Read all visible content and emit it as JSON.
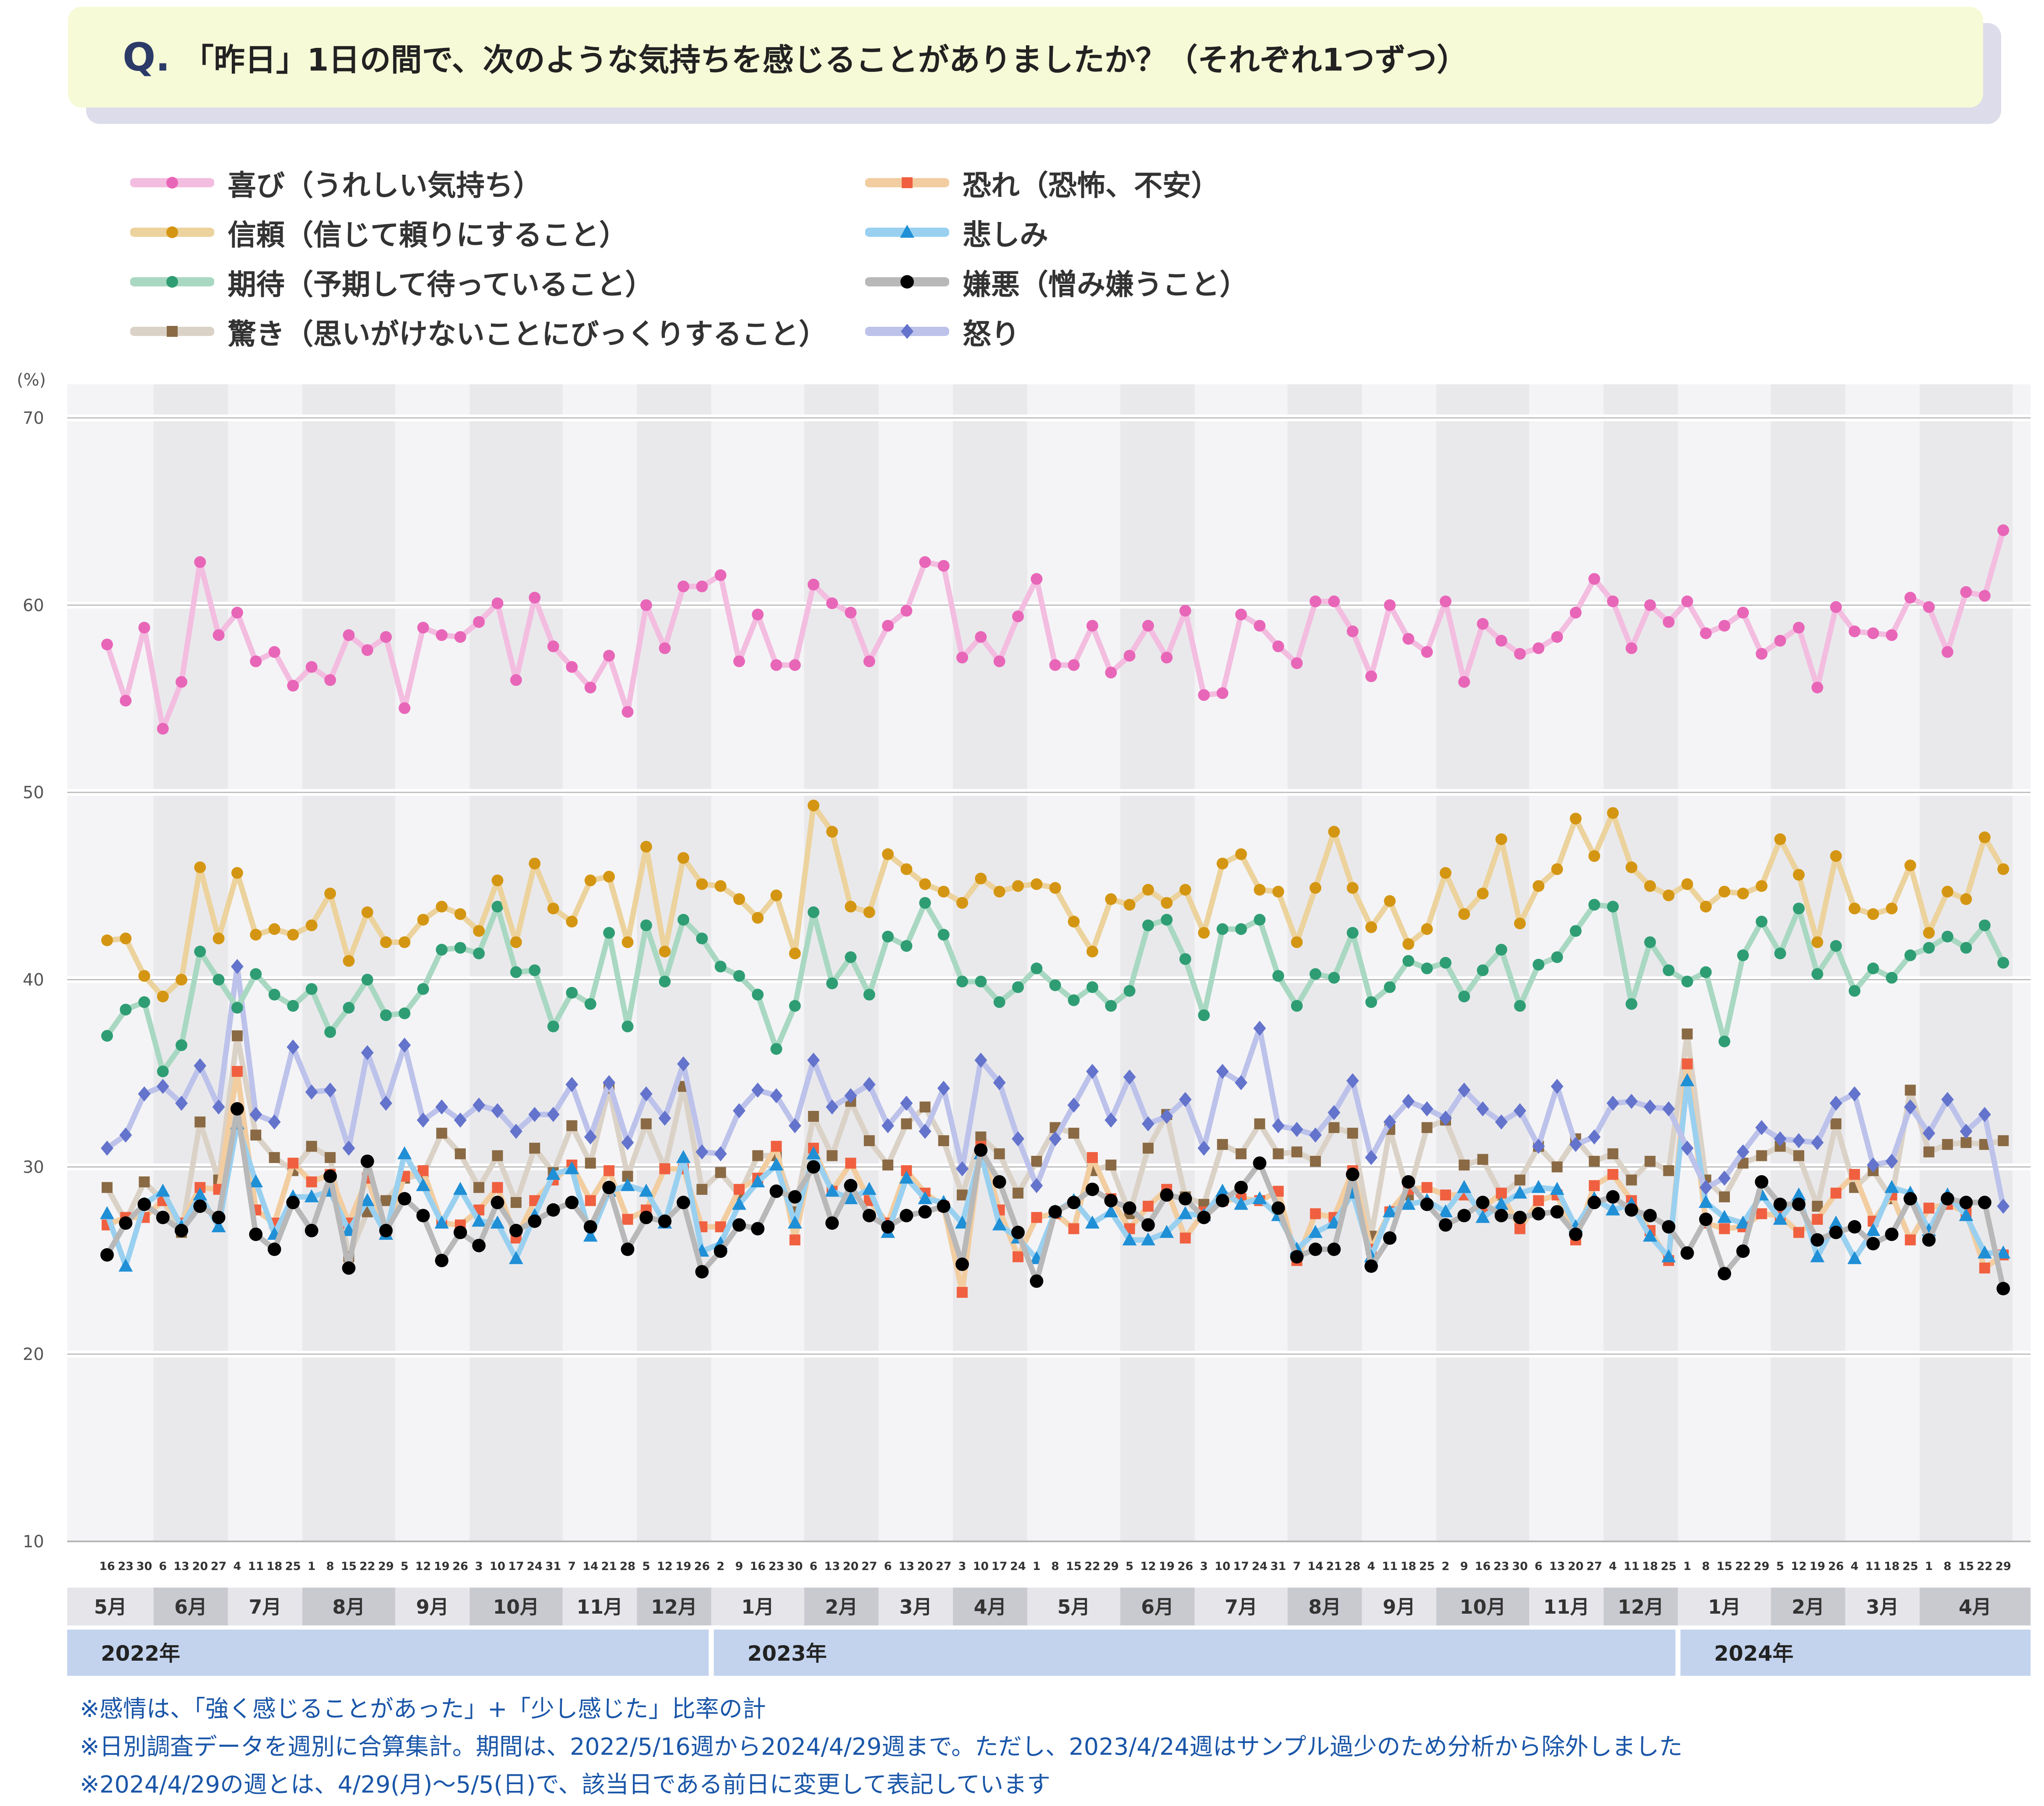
{
  "question": {
    "letter": "Q.",
    "text": "「昨日」1日の間で、次のような気持ちを感じることがありましたか？（それぞれ1つずつ）"
  },
  "unit_label": "(%)",
  "notes": [
    "※感情は、「強く感じることがあった」+「少し感じた」比率の計",
    "※日別調査データを週別に合算集計。期間は、2022/5/16週から2024/4/29週まで。ただし、2023/4/24週はサンプル過少のため分析から除外しました",
    "※2024/4/29の週とは、4/29(月)～5/5(日)で、該当日である前日に変更して表記しています"
  ],
  "chart_data": {
    "type": "line",
    "ylim": [
      10,
      70
    ],
    "yticks": [
      10,
      20,
      30,
      40,
      50,
      60,
      70
    ],
    "x": [
      "16",
      "23",
      "30",
      "6",
      "13",
      "20",
      "27",
      "4",
      "11",
      "18",
      "25",
      "1",
      "8",
      "15",
      "22",
      "29",
      "5",
      "12",
      "19",
      "26",
      "3",
      "10",
      "17",
      "24",
      "31",
      "7",
      "14",
      "21",
      "28",
      "5",
      "12",
      "19",
      "26",
      "2",
      "9",
      "16",
      "23",
      "30",
      "6",
      "13",
      "20",
      "27",
      "6",
      "13",
      "20",
      "27",
      "3",
      "10",
      "17",
      "24",
      "1",
      "8",
      "15",
      "22",
      "29",
      "5",
      "12",
      "19",
      "26",
      "3",
      "10",
      "17",
      "24",
      "31",
      "7",
      "14",
      "21",
      "28",
      "4",
      "11",
      "18",
      "25",
      "2",
      "9",
      "16",
      "23",
      "30",
      "6",
      "13",
      "20",
      "27",
      "4",
      "11",
      "18",
      "25",
      "1",
      "8",
      "15",
      "22",
      "29",
      "5",
      "12",
      "19",
      "26",
      "4",
      "11",
      "18",
      "25",
      "1",
      "8",
      "15",
      "22",
      "29"
    ],
    "months": [
      {
        "label": "5月",
        "count": 3
      },
      {
        "label": "6月",
        "count": 4
      },
      {
        "label": "7月",
        "count": 4
      },
      {
        "label": "8月",
        "count": 5
      },
      {
        "label": "9月",
        "count": 4
      },
      {
        "label": "10月",
        "count": 5
      },
      {
        "label": "11月",
        "count": 4
      },
      {
        "label": "12月",
        "count": 4
      },
      {
        "label": "1月",
        "count": 5
      },
      {
        "label": "2月",
        "count": 4
      },
      {
        "label": "3月",
        "count": 4
      },
      {
        "label": "4月",
        "count": 4
      },
      {
        "label": "5月",
        "count": 5
      },
      {
        "label": "6月",
        "count": 4
      },
      {
        "label": "7月",
        "count": 5
      },
      {
        "label": "8月",
        "count": 4
      },
      {
        "label": "9月",
        "count": 4
      },
      {
        "label": "10月",
        "count": 5
      },
      {
        "label": "11月",
        "count": 4
      },
      {
        "label": "12月",
        "count": 4
      },
      {
        "label": "1月",
        "count": 5
      },
      {
        "label": "2月",
        "count": 4
      },
      {
        "label": "3月",
        "count": 4
      },
      {
        "label": "4月",
        "count": 5
      }
    ],
    "years": [
      {
        "label": "2022年",
        "count": 33
      },
      {
        "label": "2023年",
        "count": 52
      },
      {
        "label": "2024年",
        "count": 18
      }
    ],
    "series": [
      {
        "name": "喜び（うれしい気持ち）",
        "color": "#e866b8",
        "line_color": "#f3bde0",
        "marker": "circle",
        "values": [
          57.9,
          54.9,
          58.8,
          53.4,
          55.9,
          62.3,
          58.4,
          59.6,
          57.0,
          57.5,
          55.7,
          56.7,
          56.0,
          58.4,
          57.6,
          58.3,
          54.5,
          58.8,
          58.4,
          58.3,
          59.1,
          60.1,
          56.0,
          60.4,
          57.8,
          56.7,
          55.6,
          57.3,
          54.3,
          60.0,
          57.7,
          61.0,
          61.0,
          61.6,
          57.0,
          59.5,
          56.8,
          56.8,
          61.1,
          60.1,
          59.6,
          57.0,
          58.9,
          59.7,
          62.3,
          62.1,
          57.2,
          58.3,
          57.0,
          59.4,
          61.4,
          56.8,
          56.8,
          58.9,
          56.4,
          57.3,
          58.9,
          57.2,
          59.7,
          55.2,
          55.3,
          59.5,
          58.9,
          57.8,
          56.9,
          60.2,
          60.2,
          58.6,
          56.2,
          60.0,
          58.2,
          57.5,
          60.2,
          55.9,
          59.0,
          58.1,
          57.4,
          57.7,
          58.3,
          59.6,
          61.4,
          60.2,
          57.7,
          60.0,
          59.1,
          60.2,
          58.5,
          58.9,
          59.6,
          57.4,
          58.1,
          58.8,
          55.6,
          59.9,
          58.6,
          58.5,
          58.4,
          60.4,
          59.9,
          57.5,
          60.7,
          60.5,
          64.0
        ]
      },
      {
        "name": "信頼（信じて頼りにすること）",
        "color": "#d49612",
        "line_color": "#ecd29c",
        "marker": "circle",
        "values": [
          42.1,
          42.2,
          40.2,
          39.1,
          40.0,
          46.0,
          42.2,
          45.7,
          42.4,
          42.7,
          42.4,
          42.9,
          44.6,
          41.0,
          43.6,
          42.0,
          42.0,
          43.2,
          43.9,
          43.5,
          42.6,
          45.3,
          42.0,
          46.2,
          43.8,
          43.1,
          45.3,
          45.5,
          42.0,
          47.1,
          41.5,
          46.5,
          45.1,
          45.0,
          44.3,
          43.3,
          44.5,
          41.4,
          49.3,
          47.9,
          43.9,
          43.6,
          46.7,
          45.9,
          45.1,
          44.7,
          44.1,
          45.4,
          44.7,
          45.0,
          45.1,
          44.9,
          43.1,
          41.5,
          44.3,
          44.0,
          44.8,
          44.1,
          44.8,
          42.5,
          46.2,
          46.7,
          44.8,
          44.7,
          42.0,
          44.9,
          47.9,
          44.9,
          42.8,
          44.2,
          41.9,
          42.7,
          45.7,
          43.5,
          44.6,
          47.5,
          43.0,
          45.0,
          45.9,
          48.6,
          46.6,
          48.9,
          46.0,
          45.0,
          44.5,
          45.1,
          43.9,
          44.7,
          44.6,
          45.0,
          47.5,
          45.6,
          42.0,
          46.6,
          43.8,
          43.5,
          43.8,
          46.1,
          42.5,
          44.7,
          44.3,
          47.6,
          45.9
        ]
      },
      {
        "name": "期待（予期して待っていること）",
        "color": "#2f9d74",
        "line_color": "#a9d8c2",
        "marker": "circle",
        "values": [
          37.0,
          38.4,
          38.8,
          35.1,
          36.5,
          41.5,
          40.0,
          38.5,
          40.3,
          39.2,
          38.6,
          39.5,
          37.2,
          38.5,
          40.0,
          38.1,
          38.2,
          39.5,
          41.6,
          41.7,
          41.4,
          43.9,
          40.4,
          40.5,
          37.5,
          39.3,
          38.7,
          42.5,
          37.5,
          42.9,
          39.9,
          43.2,
          42.2,
          40.7,
          40.2,
          39.2,
          36.3,
          38.6,
          43.6,
          39.8,
          41.2,
          39.2,
          42.3,
          41.8,
          44.1,
          42.4,
          39.9,
          39.9,
          38.8,
          39.6,
          40.6,
          39.7,
          38.9,
          39.6,
          38.6,
          39.4,
          42.9,
          43.2,
          41.1,
          38.1,
          42.7,
          42.7,
          43.2,
          40.2,
          38.6,
          40.3,
          40.1,
          42.5,
          38.8,
          39.6,
          41.0,
          40.6,
          40.9,
          39.1,
          40.5,
          41.6,
          38.6,
          40.8,
          41.2,
          42.6,
          44.0,
          43.9,
          38.7,
          42.0,
          40.5,
          39.9,
          40.4,
          36.7,
          41.3,
          43.1,
          41.4,
          43.8,
          40.3,
          41.8,
          39.4,
          40.6,
          40.1,
          41.3,
          41.7,
          42.3,
          41.7,
          42.9,
          40.9
        ]
      },
      {
        "name": "驚き（思いがけないことにびっくりすること）",
        "color": "#8a6a44",
        "line_color": "#dbd2c7",
        "marker": "square",
        "values": [
          28.9,
          27.1,
          29.2,
          28.2,
          26.5,
          32.4,
          29.3,
          37.0,
          31.7,
          30.5,
          29.8,
          31.1,
          30.5,
          25.2,
          27.6,
          28.2,
          29.4,
          29.6,
          31.8,
          30.7,
          28.9,
          30.6,
          28.1,
          31.0,
          29.7,
          32.2,
          30.2,
          34.2,
          29.5,
          32.3,
          29.9,
          34.3,
          28.8,
          29.7,
          28.5,
          30.6,
          30.6,
          27.6,
          32.7,
          30.6,
          33.5,
          31.4,
          30.1,
          32.3,
          33.2,
          31.4,
          28.5,
          31.6,
          30.7,
          28.6,
          30.3,
          32.1,
          31.8,
          29.8,
          30.1,
          27.5,
          31.0,
          32.8,
          28.4,
          28.0,
          31.2,
          30.7,
          32.3,
          30.7,
          30.8,
          30.3,
          32.1,
          31.8,
          26.3,
          32.0,
          28.5,
          32.1,
          32.5,
          30.1,
          30.4,
          28.5,
          29.3,
          31.1,
          30.0,
          31.5,
          30.3,
          30.7,
          29.3,
          30.3,
          29.8,
          37.1,
          29.3,
          28.4,
          30.2,
          30.6,
          31.1,
          30.6,
          27.9,
          32.3,
          28.9,
          29.8,
          28.3,
          34.1,
          30.8,
          31.2,
          31.3,
          31.2,
          31.4
        ]
      },
      {
        "name": "恐れ（恐怖、不安）",
        "color": "#f06040",
        "line_color": "#f2cda0",
        "marker": "square",
        "values": [
          26.9,
          27.3,
          27.3,
          28.2,
          27.0,
          28.9,
          28.8,
          35.1,
          27.7,
          27.0,
          30.2,
          29.2,
          29.6,
          27.0,
          29.4,
          26.6,
          29.5,
          29.8,
          27.0,
          26.9,
          27.7,
          28.9,
          26.2,
          28.2,
          29.3,
          30.1,
          28.2,
          29.8,
          27.2,
          27.7,
          29.9,
          29.9,
          26.8,
          26.8,
          28.8,
          29.4,
          31.1,
          26.1,
          31.0,
          28.7,
          30.2,
          28.2,
          27.0,
          29.8,
          28.6,
          27.9,
          23.3,
          31.1,
          27.7,
          25.2,
          27.3,
          27.5,
          26.7,
          30.5,
          28.3,
          26.7,
          27.9,
          28.8,
          26.2,
          27.6,
          28.2,
          28.3,
          28.2,
          28.7,
          25.0,
          27.5,
          27.3,
          29.8,
          25.6,
          27.6,
          28.8,
          28.9,
          28.5,
          28.5,
          27.8,
          28.6,
          26.7,
          28.2,
          28.5,
          26.1,
          29.0,
          29.6,
          28.2,
          26.6,
          25.0,
          35.5,
          27.0,
          26.7,
          26.8,
          27.5,
          27.4,
          26.5,
          27.2,
          28.6,
          29.6,
          27.1,
          28.5,
          26.1,
          27.8,
          28.0,
          27.6,
          24.6,
          25.3
        ]
      },
      {
        "name": "悲しみ",
        "color": "#1f8fd6",
        "line_color": "#99d0f0",
        "marker": "triangle",
        "values": [
          27.5,
          24.7,
          28.0,
          28.7,
          26.8,
          28.5,
          26.8,
          32.3,
          29.2,
          26.4,
          28.4,
          28.4,
          28.7,
          26.6,
          28.2,
          26.4,
          30.7,
          29.0,
          27.0,
          28.8,
          27.1,
          27.0,
          25.1,
          27.4,
          29.6,
          29.9,
          26.3,
          28.7,
          29.0,
          28.7,
          27.0,
          30.5,
          25.5,
          25.9,
          28.0,
          29.2,
          30.1,
          27.0,
          30.7,
          28.7,
          28.3,
          28.8,
          26.5,
          29.4,
          28.3,
          28.1,
          27.0,
          30.7,
          26.9,
          26.2,
          25.1,
          27.6,
          28.2,
          27.0,
          27.6,
          26.1,
          26.1,
          26.5,
          27.5,
          27.4,
          28.7,
          28.0,
          28.3,
          27.4,
          25.6,
          26.5,
          27.0,
          28.6,
          25.2,
          27.6,
          28.0,
          28.2,
          27.6,
          28.9,
          27.3,
          28.0,
          28.6,
          28.9,
          28.8,
          26.8,
          28.3,
          27.7,
          28.0,
          26.3,
          25.2,
          34.6,
          28.1,
          27.3,
          27.0,
          28.5,
          27.2,
          28.5,
          25.2,
          27.0,
          25.1,
          26.6,
          28.9,
          28.6,
          26.6,
          28.5,
          27.4,
          25.4,
          25.4
        ]
      },
      {
        "name": "嫌悪（憎み嫌うこと）",
        "color": "#000000",
        "line_color": "#b8b8b8",
        "marker": "circle",
        "values": [
          25.3,
          27.0,
          28.0,
          27.3,
          26.6,
          27.9,
          27.3,
          33.1,
          26.4,
          25.6,
          28.1,
          26.6,
          29.5,
          24.6,
          30.3,
          26.6,
          28.3,
          27.4,
          25.0,
          26.5,
          25.8,
          28.1,
          26.6,
          27.1,
          27.7,
          28.1,
          26.8,
          28.9,
          25.6,
          27.3,
          27.1,
          28.1,
          24.4,
          25.5,
          26.9,
          26.7,
          28.7,
          28.4,
          30.0,
          27.0,
          29.0,
          27.4,
          26.8,
          27.4,
          27.6,
          27.9,
          24.8,
          30.9,
          29.2,
          26.5,
          23.9,
          27.6,
          28.1,
          28.8,
          28.2,
          27.8,
          26.9,
          28.5,
          28.3,
          27.3,
          28.2,
          28.9,
          30.2,
          27.8,
          25.2,
          25.6,
          25.6,
          29.6,
          24.7,
          26.2,
          29.2,
          28.0,
          26.9,
          27.4,
          28.1,
          27.4,
          27.3,
          27.5,
          27.6,
          26.4,
          28.1,
          28.4,
          27.7,
          27.4,
          26.8,
          25.4,
          27.2,
          24.3,
          25.5,
          29.2,
          28.0,
          28.0,
          26.1,
          26.5,
          26.8,
          25.9,
          26.4,
          28.3,
          26.1,
          28.3,
          28.1,
          28.1,
          23.5
        ]
      },
      {
        "name": "怒り",
        "color": "#6474cc",
        "line_color": "#bcc2ea",
        "marker": "diamond",
        "values": [
          31.0,
          31.7,
          33.9,
          34.3,
          33.4,
          35.4,
          33.2,
          40.7,
          32.8,
          32.4,
          36.4,
          34.0,
          34.1,
          31.0,
          36.1,
          33.4,
          36.5,
          32.5,
          33.2,
          32.5,
          33.3,
          33.0,
          31.9,
          32.8,
          32.8,
          34.4,
          31.6,
          34.5,
          31.3,
          33.9,
          32.6,
          35.5,
          30.8,
          30.7,
          33.0,
          34.1,
          33.8,
          32.2,
          35.7,
          33.2,
          33.8,
          34.4,
          32.2,
          33.4,
          31.9,
          34.2,
          29.9,
          35.7,
          34.5,
          31.5,
          29.0,
          31.5,
          33.3,
          35.1,
          32.5,
          34.8,
          32.3,
          32.7,
          33.6,
          31.0,
          35.1,
          34.5,
          37.4,
          32.2,
          32.0,
          31.7,
          32.9,
          34.6,
          30.5,
          32.4,
          33.5,
          33.1,
          32.6,
          34.1,
          33.1,
          32.4,
          33.0,
          31.1,
          34.3,
          31.2,
          31.6,
          33.4,
          33.5,
          33.2,
          33.1,
          31.0,
          28.9,
          29.4,
          30.8,
          32.1,
          31.5,
          31.4,
          31.3,
          33.4,
          33.9,
          30.1,
          30.3,
          33.2,
          31.8,
          33.6,
          31.9,
          32.8,
          27.9
        ]
      }
    ]
  }
}
